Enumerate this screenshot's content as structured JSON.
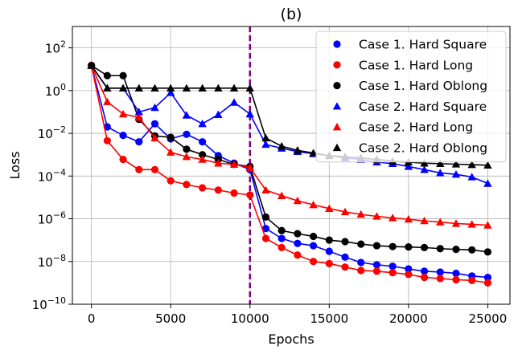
{
  "chart_data": {
    "type": "line",
    "title": "(b)",
    "xlabel": "Epochs",
    "ylabel": "Loss",
    "xlim": [
      -1200,
      26400
    ],
    "ylim": [
      1e-10,
      1000
    ],
    "yscale": "log",
    "x_ticks": [
      0,
      5000,
      10000,
      15000,
      20000,
      25000
    ],
    "x_tick_labels": [
      "0",
      "5000",
      "10000",
      "15000",
      "20000",
      "25000"
    ],
    "y_ticks": [
      1e-10,
      1e-08,
      1e-06,
      0.0001,
      0.01,
      1,
      100
    ],
    "y_tick_labels": [
      {
        "base": "10",
        "exp": "−10"
      },
      {
        "base": "10",
        "exp": "−8"
      },
      {
        "base": "10",
        "exp": "−6"
      },
      {
        "base": "10",
        "exp": "−4"
      },
      {
        "base": "10",
        "exp": "−2"
      },
      {
        "base": "10",
        "exp": "0"
      },
      {
        "base": "10",
        "exp": "2"
      }
    ],
    "grid": true,
    "legend_position": "top-right",
    "vline": {
      "x": 10000,
      "color": "#800080",
      "style": "dashed"
    },
    "x": [
      0,
      1000,
      2000,
      3000,
      4000,
      5000,
      6000,
      7000,
      8000,
      9000,
      10000,
      11000,
      12000,
      13000,
      14000,
      15000,
      16000,
      17000,
      18000,
      19000,
      20000,
      21000,
      22000,
      23000,
      24000,
      25000
    ],
    "series": [
      {
        "name": "Case 1. Hard Square",
        "color": "#0000ff",
        "marker": "circle",
        "values": [
          15,
          0.02,
          0.008,
          0.004,
          0.028,
          0.0055,
          0.009,
          0.004,
          0.0009,
          0.0004,
          0.0002,
          3.5e-07,
          1.2e-07,
          7e-08,
          5.5e-08,
          3e-08,
          1.6e-08,
          9e-09,
          7e-09,
          6e-09,
          4.5e-09,
          3.5e-09,
          3.2e-09,
          2.8e-09,
          2.1e-09,
          1.8e-09
        ]
      },
      {
        "name": "Case 1. Hard Long",
        "color": "#ff0000",
        "marker": "circle",
        "values": [
          15,
          0.0045,
          0.0006,
          0.0002,
          0.0002,
          6e-05,
          4e-05,
          2.8e-05,
          2.2e-05,
          1.6e-05,
          1.3e-05,
          1.2e-07,
          4.5e-08,
          2e-08,
          1e-08,
          8e-09,
          5.5e-09,
          3.8e-09,
          3.5e-09,
          3e-09,
          2.5e-09,
          1.8e-09,
          1.6e-09,
          1.4e-09,
          1.3e-09,
          1e-09
        ]
      },
      {
        "name": "Case 1. Hard Oblong",
        "color": "#000000",
        "marker": "circle",
        "values": [
          15,
          5,
          5,
          0.045,
          0.0075,
          0.0065,
          0.0018,
          0.001,
          0.0006,
          0.00035,
          0.00028,
          1.2e-06,
          2.8e-07,
          2e-07,
          1.5e-07,
          1e-07,
          8.5e-08,
          6.5e-08,
          5.5e-08,
          5e-08,
          4.8e-08,
          4.5e-08,
          4e-08,
          3.7e-08,
          3.5e-08,
          2.8e-08
        ]
      },
      {
        "name": "Case 2. Hard Square",
        "color": "#0000ff",
        "marker": "triangle",
        "values": [
          15,
          1.3,
          1.3,
          0.1,
          0.16,
          0.8,
          0.07,
          0.028,
          0.075,
          0.28,
          0.08,
          0.003,
          0.002,
          0.0014,
          0.0011,
          0.0009,
          0.0007,
          0.0006,
          0.00045,
          0.00038,
          0.00028,
          0.0002,
          0.00014,
          0.00012,
          9e-05,
          4.5e-05
        ]
      },
      {
        "name": "Case 2. Hard Long",
        "color": "#ff0000",
        "marker": "triangle",
        "values": [
          15,
          0.3,
          0.08,
          0.055,
          0.006,
          0.0013,
          0.0008,
          0.0006,
          0.0004,
          0.00035,
          0.00025,
          2.2e-05,
          1.2e-05,
          7e-06,
          4.5e-06,
          3e-06,
          2.1e-06,
          1.6e-06,
          1.3e-06,
          1.1e-06,
          9.5e-07,
          8e-07,
          7e-07,
          6e-07,
          5.5e-07,
          5e-07
        ]
      },
      {
        "name": "Case 2. Hard Oblong",
        "color": "#000000",
        "marker": "triangle",
        "values": [
          15,
          1.3,
          1.3,
          1.3,
          1.3,
          1.3,
          1.3,
          1.3,
          1.3,
          1.3,
          1.3,
          0.006,
          0.0025,
          0.0016,
          0.0012,
          0.0009,
          0.0008,
          0.0007,
          0.0006,
          0.0005,
          0.00045,
          0.0004,
          0.00038,
          0.00036,
          0.00034,
          0.00032
        ]
      }
    ]
  }
}
